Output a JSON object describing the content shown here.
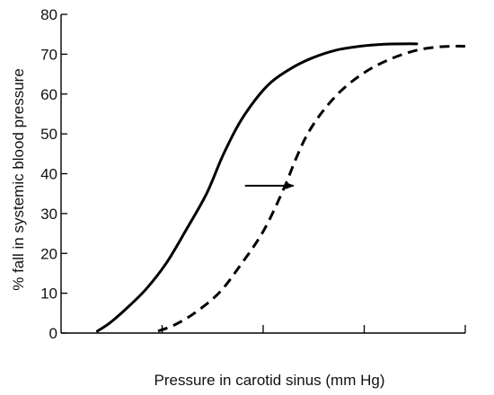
{
  "chart_data": {
    "type": "line",
    "title": "",
    "xlabel": "Pressure in carotid sinus (mm Hg)",
    "ylabel": "% fall in systemic blood pressure",
    "xlim": [
      0,
      100
    ],
    "ylim": [
      0,
      80
    ],
    "yticks": [
      0,
      10,
      20,
      30,
      40,
      50,
      60,
      70,
      80
    ],
    "x_tick_positions": [
      25,
      50,
      75,
      100
    ],
    "x_tick_labels_shown": false,
    "grid": false,
    "legend": "none",
    "series": [
      {
        "style": "solid",
        "color": "#000000",
        "x": [
          9,
          12,
          16,
          21,
          26,
          31,
          36,
          40,
          44,
          48,
          52,
          57,
          62,
          68,
          74,
          80,
          85,
          88
        ],
        "y": [
          0.5,
          2.5,
          6,
          11,
          17.5,
          26,
          35,
          44.5,
          52.5,
          58.5,
          63,
          66.5,
          69,
          71,
          72,
          72.5,
          72.6,
          72.6
        ]
      },
      {
        "style": "dashed",
        "color": "#000000",
        "x": [
          24,
          28,
          33,
          39,
          44,
          50,
          55,
          58,
          61,
          65,
          70,
          76,
          82,
          88,
          93,
          97,
          100
        ],
        "y": [
          0.5,
          2,
          5,
          10,
          16.5,
          25.5,
          36,
          43.5,
          50,
          56,
          61.5,
          66,
          69,
          71,
          71.8,
          72,
          72
        ]
      }
    ],
    "annotations": [
      {
        "type": "arrow",
        "direction": "right",
        "from": [
          45.5,
          37
        ],
        "to": [
          57.5,
          37
        ]
      }
    ]
  }
}
